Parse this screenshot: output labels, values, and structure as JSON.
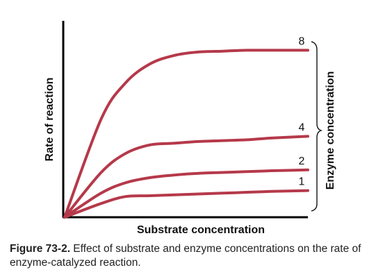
{
  "chart_data": {
    "type": "line",
    "xlabel": "Substrate concentration",
    "ylabel": "Rate of reaction",
    "grid": false,
    "series": [
      {
        "name": "8",
        "x": [
          0,
          0.15,
          0.25,
          0.35,
          0.45,
          0.55,
          0.65,
          0.75,
          0.85,
          1.0
        ],
        "values": [
          0,
          0.57,
          0.78,
          0.89,
          0.94,
          0.96,
          0.965,
          0.97,
          0.97,
          0.97
        ]
      },
      {
        "name": "4",
        "x": [
          0,
          0.15,
          0.25,
          0.35,
          0.45,
          0.55,
          0.65,
          0.75,
          0.85,
          1.0
        ],
        "values": [
          0,
          0.26,
          0.37,
          0.42,
          0.43,
          0.44,
          0.445,
          0.45,
          0.46,
          0.47
        ]
      },
      {
        "name": "2",
        "x": [
          0,
          0.15,
          0.25,
          0.35,
          0.45,
          0.55,
          0.65,
          0.75,
          0.85,
          1.0
        ],
        "values": [
          0,
          0.14,
          0.2,
          0.23,
          0.245,
          0.255,
          0.26,
          0.265,
          0.27,
          0.275
        ]
      },
      {
        "name": "1",
        "x": [
          0,
          0.15,
          0.25,
          0.35,
          0.45,
          0.55,
          0.65,
          0.75,
          0.85,
          1.0
        ],
        "values": [
          0,
          0.08,
          0.12,
          0.125,
          0.13,
          0.135,
          0.14,
          0.145,
          0.15,
          0.155
        ]
      }
    ],
    "annotations": [
      {
        "text": "Enzyme concentration",
        "type": "brace-label"
      }
    ],
    "colors": {
      "line": "#b5394a",
      "axis": "#000000",
      "text": "#111111"
    }
  },
  "caption": {
    "label": "Figure 73-2.",
    "text": " Effect of substrate and enzyme concentrations on the rate of enzyme-catalyzed reaction."
  }
}
